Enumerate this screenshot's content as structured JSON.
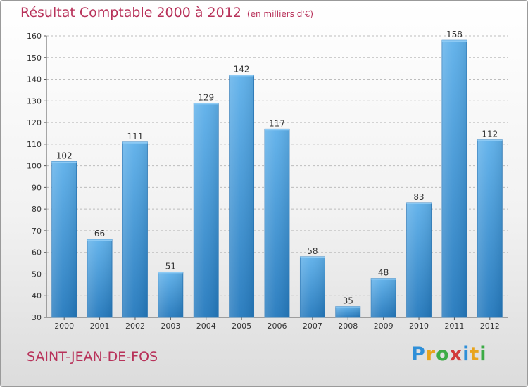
{
  "header": {
    "title": "Résultat Comptable 2000 à 2012",
    "subtitle": "(en milliers d'€)"
  },
  "footer": {
    "town": "SAINT-JEAN-DE-FOS",
    "logo_letters": [
      {
        "char": "P",
        "color": "#2f8fd8"
      },
      {
        "char": "r",
        "color": "#e8a41c"
      },
      {
        "char": "o",
        "color": "#3cab45"
      },
      {
        "char": "x",
        "color": "#d23a3a"
      },
      {
        "char": "i",
        "color": "#2f8fd8"
      },
      {
        "char": "t",
        "color": "#e8a41c"
      },
      {
        "char": "i",
        "color": "#3cab45"
      }
    ]
  },
  "chart_data": {
    "type": "bar",
    "categories": [
      "2000",
      "2001",
      "2002",
      "2003",
      "2004",
      "2005",
      "2006",
      "2007",
      "2008",
      "2009",
      "2010",
      "2011",
      "2012"
    ],
    "values": [
      102,
      66,
      111,
      51,
      129,
      142,
      117,
      58,
      35,
      48,
      83,
      158,
      112
    ],
    "ylim": [
      30,
      160
    ],
    "yticks": [
      30,
      40,
      50,
      60,
      70,
      80,
      90,
      100,
      110,
      120,
      130,
      140,
      150,
      160
    ],
    "grid": true,
    "bar_color": "#3a93d6"
  }
}
